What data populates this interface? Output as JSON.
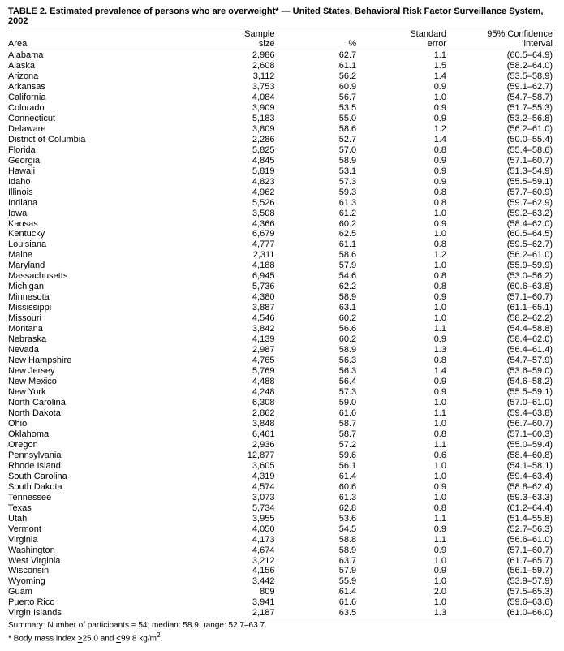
{
  "title": "TABLE 2. Estimated prevalence of persons who are overweight* — United States, Behavioral Risk Factor Surveillance System, 2002",
  "columns": {
    "area": "Area",
    "sample_size_l1": "Sample",
    "sample_size_l2": "size",
    "pct": "%",
    "se_l1": "Standard",
    "se_l2": "error",
    "ci_l1": "95% Confidence",
    "ci_l2": "interval"
  },
  "rows": [
    {
      "area": "Alabama",
      "ss": "2,986",
      "pct": "62.7",
      "se": "1.1",
      "ci": "(60.5–64.9)"
    },
    {
      "area": "Alaska",
      "ss": "2,608",
      "pct": "61.1",
      "se": "1.5",
      "ci": "(58.2–64.0)"
    },
    {
      "area": "Arizona",
      "ss": "3,112",
      "pct": "56.2",
      "se": "1.4",
      "ci": "(53.5–58.9)"
    },
    {
      "area": "Arkansas",
      "ss": "3,753",
      "pct": "60.9",
      "se": "0.9",
      "ci": "(59.1–62.7)"
    },
    {
      "area": "California",
      "ss": "4,084",
      "pct": "56.7",
      "se": "1.0",
      "ci": "(54.7–58.7)"
    },
    {
      "area": "Colorado",
      "ss": "3,909",
      "pct": "53.5",
      "se": "0.9",
      "ci": "(51.7–55.3)"
    },
    {
      "area": "Connecticut",
      "ss": "5,183",
      "pct": "55.0",
      "se": "0.9",
      "ci": "(53.2–56.8)"
    },
    {
      "area": "Delaware",
      "ss": "3,809",
      "pct": "58.6",
      "se": "1.2",
      "ci": "(56.2–61.0)"
    },
    {
      "area": "District of Columbia",
      "ss": "2,286",
      "pct": "52.7",
      "se": "1.4",
      "ci": "(50.0–55.4)"
    },
    {
      "area": "Florida",
      "ss": "5,825",
      "pct": "57.0",
      "se": "0.8",
      "ci": "(55.4–58.6)"
    },
    {
      "area": "Georgia",
      "ss": "4,845",
      "pct": "58.9",
      "se": "0.9",
      "ci": "(57.1–60.7)"
    },
    {
      "area": "Hawaii",
      "ss": "5,819",
      "pct": "53.1",
      "se": "0.9",
      "ci": "(51.3–54.9)"
    },
    {
      "area": "Idaho",
      "ss": "4,823",
      "pct": "57.3",
      "se": "0.9",
      "ci": "(55.5–59.1)"
    },
    {
      "area": "Illinois",
      "ss": "4,962",
      "pct": "59.3",
      "se": "0.8",
      "ci": "(57.7–60.9)"
    },
    {
      "area": "Indiana",
      "ss": "5,526",
      "pct": "61.3",
      "se": "0.8",
      "ci": "(59.7–62.9)"
    },
    {
      "area": "Iowa",
      "ss": "3,508",
      "pct": "61.2",
      "se": "1.0",
      "ci": "(59.2–63.2)"
    },
    {
      "area": "Kansas",
      "ss": "4,366",
      "pct": "60.2",
      "se": "0.9",
      "ci": "(58.4–62.0)"
    },
    {
      "area": "Kentucky",
      "ss": "6,679",
      "pct": "62.5",
      "se": "1.0",
      "ci": "(60.5–64.5)"
    },
    {
      "area": "Louisiana",
      "ss": "4,777",
      "pct": "61.1",
      "se": "0.8",
      "ci": "(59.5–62.7)"
    },
    {
      "area": "Maine",
      "ss": "2,311",
      "pct": "58.6",
      "se": "1.2",
      "ci": "(56.2–61.0)"
    },
    {
      "area": "Maryland",
      "ss": "4,188",
      "pct": "57.9",
      "se": "1.0",
      "ci": "(55.9–59.9)"
    },
    {
      "area": "Massachusetts",
      "ss": "6,945",
      "pct": "54.6",
      "se": "0.8",
      "ci": "(53.0–56.2)"
    },
    {
      "area": "Michigan",
      "ss": "5,736",
      "pct": "62.2",
      "se": "0.8",
      "ci": "(60.6–63.8)"
    },
    {
      "area": "Minnesota",
      "ss": "4,380",
      "pct": "58.9",
      "se": "0.9",
      "ci": "(57.1–60.7)"
    },
    {
      "area": "Mississippi",
      "ss": "3,887",
      "pct": "63.1",
      "se": "1.0",
      "ci": "(61.1–65.1)"
    },
    {
      "area": "Missouri",
      "ss": "4,546",
      "pct": "60.2",
      "se": "1.0",
      "ci": "(58.2–62.2)"
    },
    {
      "area": "Montana",
      "ss": "3,842",
      "pct": "56.6",
      "se": "1.1",
      "ci": "(54.4–58.8)"
    },
    {
      "area": "Nebraska",
      "ss": "4,139",
      "pct": "60.2",
      "se": "0.9",
      "ci": "(58.4–62.0)"
    },
    {
      "area": "Nevada",
      "ss": "2,987",
      "pct": "58.9",
      "se": "1.3",
      "ci": "(56.4–61.4)"
    },
    {
      "area": "New Hampshire",
      "ss": "4,765",
      "pct": "56.3",
      "se": "0.8",
      "ci": "(54.7–57.9)"
    },
    {
      "area": "New Jersey",
      "ss": "5,769",
      "pct": "56.3",
      "se": "1.4",
      "ci": "(53.6–59.0)"
    },
    {
      "area": "New Mexico",
      "ss": "4,488",
      "pct": "56.4",
      "se": "0.9",
      "ci": "(54.6–58.2)"
    },
    {
      "area": "New York",
      "ss": "4,248",
      "pct": "57.3",
      "se": "0.9",
      "ci": "(55.5–59.1)"
    },
    {
      "area": "North Carolina",
      "ss": "6,308",
      "pct": "59.0",
      "se": "1.0",
      "ci": "(57.0–61.0)"
    },
    {
      "area": "North Dakota",
      "ss": "2,862",
      "pct": "61.6",
      "se": "1.1",
      "ci": "(59.4–63.8)"
    },
    {
      "area": "Ohio",
      "ss": "3,848",
      "pct": "58.7",
      "se": "1.0",
      "ci": "(56.7–60.7)"
    },
    {
      "area": "Oklahoma",
      "ss": "6,461",
      "pct": "58.7",
      "se": "0.8",
      "ci": "(57.1–60.3)"
    },
    {
      "area": "Oregon",
      "ss": "2,936",
      "pct": "57.2",
      "se": "1.1",
      "ci": "(55.0–59.4)"
    },
    {
      "area": "Pennsylvania",
      "ss": "12,877",
      "pct": "59.6",
      "se": "0.6",
      "ci": "(58.4–60.8)"
    },
    {
      "area": "Rhode Island",
      "ss": "3,605",
      "pct": "56.1",
      "se": "1.0",
      "ci": "(54.1–58.1)"
    },
    {
      "area": "South Carolina",
      "ss": "4,319",
      "pct": "61.4",
      "se": "1.0",
      "ci": "(59.4–63.4)"
    },
    {
      "area": "South Dakota",
      "ss": "4,574",
      "pct": "60.6",
      "se": "0.9",
      "ci": "(58.8–62.4)"
    },
    {
      "area": "Tennessee",
      "ss": "3,073",
      "pct": "61.3",
      "se": "1.0",
      "ci": "(59.3–63.3)"
    },
    {
      "area": "Texas",
      "ss": "5,734",
      "pct": "62.8",
      "se": "0.8",
      "ci": "(61.2–64.4)"
    },
    {
      "area": "Utah",
      "ss": "3,955",
      "pct": "53.6",
      "se": "1.1",
      "ci": "(51.4–55.8)"
    },
    {
      "area": "Vermont",
      "ss": "4,050",
      "pct": "54.5",
      "se": "0.9",
      "ci": "(52.7–56.3)"
    },
    {
      "area": "Virginia",
      "ss": "4,173",
      "pct": "58.8",
      "se": "1.1",
      "ci": "(56.6–61.0)"
    },
    {
      "area": "Washington",
      "ss": "4,674",
      "pct": "58.9",
      "se": "0.9",
      "ci": "(57.1–60.7)"
    },
    {
      "area": "West Virginia",
      "ss": "3,212",
      "pct": "63.7",
      "se": "1.0",
      "ci": "(61.7–65.7)"
    },
    {
      "area": "Wisconsin",
      "ss": "4,156",
      "pct": "57.9",
      "se": "0.9",
      "ci": "(56.1–59.7)"
    },
    {
      "area": "Wyoming",
      "ss": "3,442",
      "pct": "55.9",
      "se": "1.0",
      "ci": "(53.9–57.9)"
    },
    {
      "area": "Guam",
      "ss": "809",
      "pct": "61.4",
      "se": "2.0",
      "ci": "(57.5–65.3)"
    },
    {
      "area": "Puerto Rico",
      "ss": "3,941",
      "pct": "61.6",
      "se": "1.0",
      "ci": "(59.6–63.6)"
    },
    {
      "area": "Virgin Islands",
      "ss": "2,187",
      "pct": "63.5",
      "se": "1.3",
      "ci": "(61.0–66.0)"
    }
  ],
  "summary_line1": "Summary: Number of participants = 54; median: 58.9; range: 52.7–63.7.",
  "summary_line2_a": "* Body mass index ",
  "summary_line2_b": "25.0 and ",
  "summary_line2_c": "99.8 kg/m",
  "summary_line2_d": "."
}
